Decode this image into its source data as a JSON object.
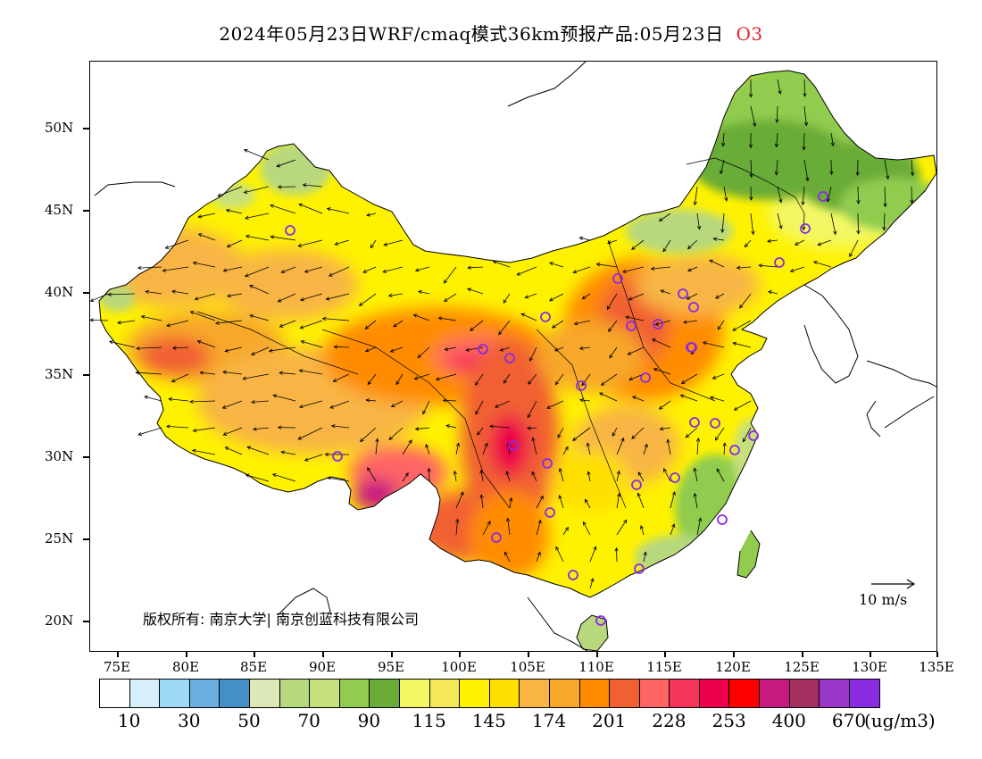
{
  "title": {
    "main": "2024年05月23日WRF/cmaq模式36km预报产品:05月23日",
    "pollutant": "O3",
    "pollutant_color": "#e8202a"
  },
  "map": {
    "lat_labels": [
      "50N",
      "45N",
      "40N",
      "35N",
      "30N",
      "25N",
      "20N"
    ],
    "lon_labels": [
      "75E",
      "80E",
      "85E",
      "90E",
      "95E",
      "100E",
      "105E",
      "110E",
      "115E",
      "120E",
      "125E",
      "130E",
      "135E"
    ],
    "copyright": "版权所有: 南京大学| 南京创蓝科技有限公司",
    "reference_vector": "10 m/s"
  },
  "colorbar": {
    "colors": [
      "#ffffff",
      "#d6effb",
      "#9ed9f4",
      "#6aafdd",
      "#4490c6",
      "#dce8b8",
      "#b8d87e",
      "#c7e07e",
      "#91cc4f",
      "#6aac38",
      "#f3f763",
      "#f6e65a",
      "#fff200",
      "#ffdf00",
      "#f8b544",
      "#f7a729",
      "#ff8c00",
      "#f16030",
      "#ff6565",
      "#f5345a",
      "#ec004a",
      "#ff0000",
      "#c81981",
      "#a5305f",
      "#9a36c7",
      "#8a2be2"
    ],
    "labels": [
      "10",
      "30",
      "50",
      "70",
      "90",
      "115",
      "145",
      "174",
      "201",
      "228",
      "253",
      "400",
      "670"
    ],
    "unit": "(ug/m3)"
  }
}
